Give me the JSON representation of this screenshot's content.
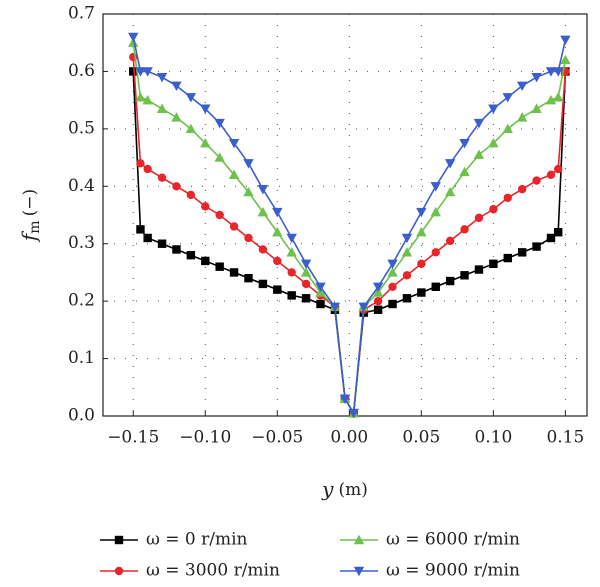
{
  "chart_data": {
    "type": "line",
    "xlabel": {
      "symbol": "y",
      "unit": "(m)"
    },
    "ylabel": {
      "symbol": "f",
      "subscript": "m",
      "unit": "(−)"
    },
    "x": [
      -0.15,
      -0.145,
      -0.14,
      -0.13,
      -0.12,
      -0.11,
      -0.1,
      -0.09,
      -0.08,
      -0.07,
      -0.06,
      -0.05,
      -0.04,
      -0.03,
      -0.02,
      -0.01,
      -0.003,
      0.003,
      0.01,
      0.02,
      0.03,
      0.04,
      0.05,
      0.06,
      0.07,
      0.08,
      0.09,
      0.1,
      0.11,
      0.12,
      0.13,
      0.14,
      0.145,
      0.15
    ],
    "series": [
      {
        "name": "ω = 0 r/min",
        "color": "#000000",
        "marker": "square",
        "values": [
          0.6,
          0.325,
          0.31,
          0.3,
          0.29,
          0.28,
          0.27,
          0.26,
          0.25,
          0.24,
          0.23,
          0.22,
          0.21,
          0.205,
          0.195,
          0.185,
          0.03,
          0.005,
          0.18,
          0.185,
          0.195,
          0.205,
          0.215,
          0.225,
          0.235,
          0.245,
          0.255,
          0.265,
          0.275,
          0.285,
          0.295,
          0.31,
          0.32,
          0.6
        ]
      },
      {
        "name": "ω = 3000 r/min",
        "color": "#e8262a",
        "marker": "circle",
        "values": [
          0.625,
          0.44,
          0.43,
          0.415,
          0.4,
          0.385,
          0.365,
          0.35,
          0.33,
          0.31,
          0.29,
          0.27,
          0.25,
          0.23,
          0.21,
          0.19,
          0.03,
          0.005,
          0.185,
          0.2,
          0.225,
          0.245,
          0.265,
          0.285,
          0.305,
          0.325,
          0.345,
          0.36,
          0.38,
          0.395,
          0.41,
          0.42,
          0.43,
          0.6
        ]
      },
      {
        "name": "ω = 6000 r/min",
        "color": "#6cc24a",
        "marker": "triangle-up",
        "values": [
          0.65,
          0.555,
          0.55,
          0.535,
          0.52,
          0.5,
          0.475,
          0.45,
          0.42,
          0.39,
          0.355,
          0.32,
          0.285,
          0.25,
          0.215,
          0.19,
          0.03,
          0.005,
          0.19,
          0.215,
          0.25,
          0.285,
          0.32,
          0.355,
          0.39,
          0.425,
          0.455,
          0.475,
          0.5,
          0.52,
          0.535,
          0.55,
          0.555,
          0.62
        ]
      },
      {
        "name": "ω = 9000 r/min",
        "color": "#3a5fcd",
        "marker": "triangle-down",
        "values": [
          0.66,
          0.6,
          0.6,
          0.59,
          0.575,
          0.555,
          0.535,
          0.51,
          0.475,
          0.44,
          0.395,
          0.355,
          0.31,
          0.265,
          0.225,
          0.19,
          0.03,
          0.005,
          0.19,
          0.225,
          0.265,
          0.31,
          0.355,
          0.4,
          0.44,
          0.475,
          0.51,
          0.535,
          0.555,
          0.575,
          0.59,
          0.6,
          0.6,
          0.655
        ]
      }
    ],
    "xlim": [
      -0.171,
      0.165
    ],
    "xticks": [
      {
        "value": -0.15,
        "label": "−0.15"
      },
      {
        "value": -0.1,
        "label": "−0.10"
      },
      {
        "value": -0.05,
        "label": "−0.05"
      },
      {
        "value": 0,
        "label": "0.00"
      },
      0.05,
      {
        "value": 0.1,
        "label": "0.10"
      },
      0.15
    ],
    "ylim": [
      0,
      0.7
    ],
    "yticks": [
      {
        "value": 0,
        "label": "0.0"
      },
      0.1,
      0.2,
      0.3,
      0.4,
      0.5,
      0.6,
      0.7
    ],
    "grid": true
  }
}
